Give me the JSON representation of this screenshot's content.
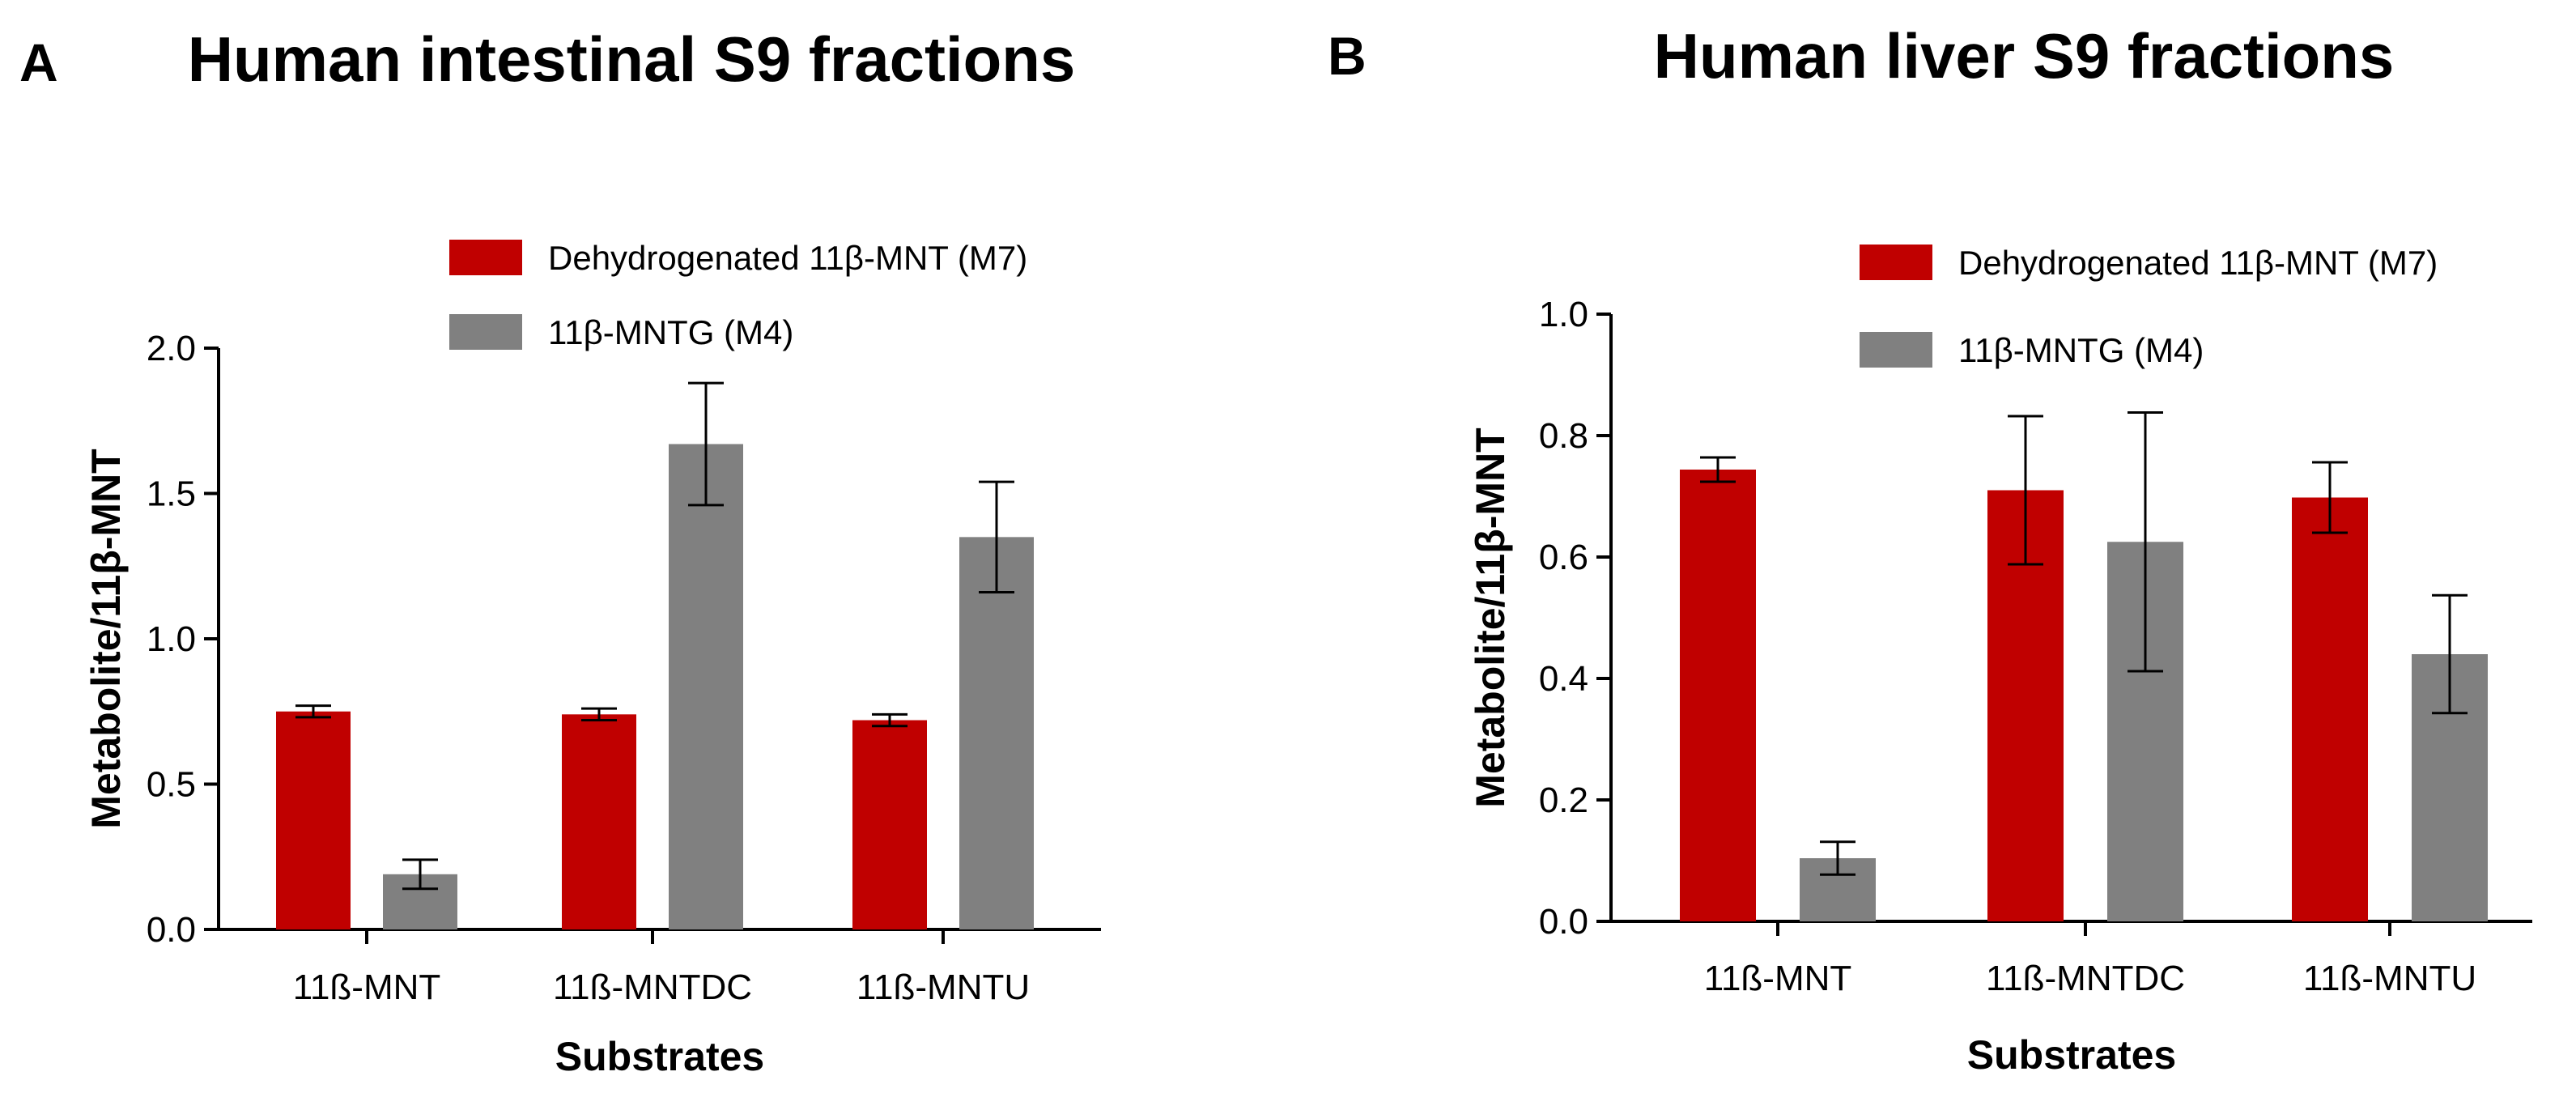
{
  "panels": [
    {
      "letter": "A",
      "title": "Human intestinal S9 fractions"
    },
    {
      "letter": "B",
      "title": "Human liver S9 fractions"
    }
  ],
  "colors": {
    "m7": "#c00000",
    "m4": "#808080",
    "axis": "#000000"
  },
  "chart_data": [
    {
      "type": "bar",
      "title": "Human intestinal S9 fractions",
      "xlabel": "Substrates",
      "ylabel": "Metabolite/11β-MNT",
      "ylim": [
        0,
        2.0
      ],
      "yticks": [
        "0.0",
        "0.5",
        "1.0",
        "1.5",
        "2.0"
      ],
      "categories": [
        "11ß-MNT",
        "11ß-MNTDC",
        "11ß-MNTU"
      ],
      "legend_position": "top-right",
      "series": [
        {
          "name": "Dehydrogenated 11β-MNT (M7)",
          "values": [
            0.75,
            0.74,
            0.72
          ],
          "errors": [
            0.02,
            0.02,
            0.02
          ]
        },
        {
          "name": "11β-MNTG (M4)",
          "values": [
            0.19,
            1.67,
            1.35
          ],
          "errors": [
            0.05,
            0.21,
            0.19
          ]
        }
      ]
    },
    {
      "type": "bar",
      "title": "Human liver S9 fractions",
      "xlabel": "Substrates",
      "ylabel": "Metabolite/11β-MNT",
      "ylim": [
        0,
        1.0
      ],
      "yticks": [
        "0.0",
        "0.2",
        "0.4",
        "0.6",
        "0.8",
        "1.0"
      ],
      "categories": [
        "11ß-MNT",
        "11ß-MNTDC",
        "11ß-MNTU"
      ],
      "legend_position": "top-right",
      "series": [
        {
          "name": "Dehydrogenated 11β-MNT (M7)",
          "values": [
            0.744,
            0.71,
            0.698
          ],
          "errors": [
            0.02,
            0.122,
            0.058
          ]
        },
        {
          "name": "11β-MNTG (M4)",
          "values": [
            0.104,
            0.625,
            0.44
          ],
          "errors": [
            0.027,
            0.213,
            0.097
          ]
        }
      ]
    }
  ]
}
